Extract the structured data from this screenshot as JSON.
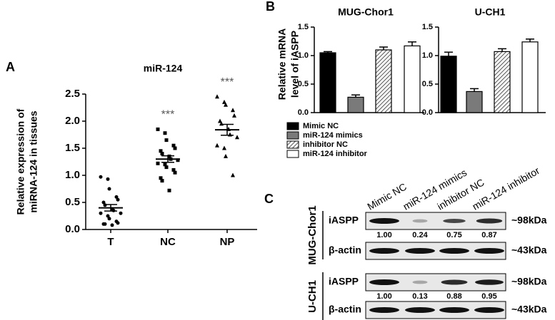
{
  "chart_data": [
    {
      "type": "dot",
      "panel": "A",
      "title": "miR-124",
      "ylabel": [
        "Relative expression of",
        "miRNA-124 in tissues"
      ],
      "categories": [
        "T",
        "NC",
        "NP"
      ],
      "markers": [
        "circle",
        "square",
        "triangle"
      ],
      "values": [
        [
          0.97,
          0.93,
          0.75,
          0.6,
          0.55,
          0.5,
          0.45,
          0.38,
          0.35,
          0.3,
          0.3,
          0.25,
          0.2,
          0.15,
          0.12,
          0.1,
          0.1,
          0.08
        ],
        [
          1.85,
          1.78,
          1.65,
          1.55,
          1.5,
          1.45,
          1.4,
          1.35,
          1.3,
          1.28,
          1.22,
          1.2,
          1.15,
          1.1,
          1.05,
          0.95,
          0.9,
          0.72
        ],
        [
          2.45,
          2.35,
          2.3,
          2.2,
          2.1,
          2.0,
          1.95,
          1.85,
          1.75,
          1.7,
          1.55,
          1.5,
          1.35,
          1.0
        ]
      ],
      "mean": [
        0.4,
        1.3,
        1.84
      ],
      "sem": [
        0.06,
        0.06,
        0.1
      ],
      "annotations": [
        null,
        "***",
        "***"
      ],
      "ylim": [
        0,
        2.5
      ],
      "yticks": [
        {
          "value": 0,
          "label": "0.0"
        },
        0.5,
        {
          "value": 1,
          "label": "1.0"
        },
        1.5,
        {
          "value": 2,
          "label": "2.0"
        },
        2.5
      ]
    },
    {
      "type": "bar",
      "panel": "B",
      "title": "MUG-Chor1",
      "ylabel": [
        "Relative mRNA",
        "level of iASPP"
      ],
      "values": [
        1.05,
        0.27,
        1.1,
        1.17
      ],
      "errors": [
        0.02,
        0.04,
        0.05,
        0.07
      ],
      "ylim": [
        0,
        1.5
      ],
      "yticks": [
        {
          "value": 0,
          "label": "0.0"
        },
        0.5,
        {
          "value": 1,
          "label": "1.0"
        },
        1.5
      ],
      "legend": [
        {
          "name": "Mimic NC",
          "color": "#000000"
        },
        {
          "name": "miR-124 mimics",
          "color": "#7a7a7a"
        },
        {
          "name": "inhibitor NC",
          "color": "hatch"
        },
        {
          "name": "miR-124 inhibitor",
          "color": "#ffffff"
        }
      ]
    },
    {
      "type": "bar",
      "title": "U-CH1",
      "values": [
        0.99,
        0.37,
        1.07,
        1.24
      ],
      "errors": [
        0.07,
        0.05,
        0.05,
        0.05
      ],
      "ylim": [
        0,
        1.5
      ],
      "yticks": [
        {
          "value": 0,
          "label": "0.0"
        },
        0.5,
        {
          "value": 1,
          "label": "1.0"
        },
        1.5
      ]
    }
  ],
  "blot": {
    "panel": "C",
    "columns": [
      "Mimic NC",
      "miR-124 mimics",
      "inhibitor NC",
      "miR-124 inhibitor"
    ],
    "groups": [
      {
        "cell_line": "MUG-Chor1",
        "rows": [
          {
            "protein": "iASPP",
            "size": "~98kDa",
            "quant": [
              "1.00",
              "0.24",
              "0.75",
              "0.87"
            ]
          },
          {
            "protein": "β-actin",
            "size": "~43kDa"
          }
        ]
      },
      {
        "cell_line": "U-CH1",
        "rows": [
          {
            "protein": "iASPP",
            "size": "~98kDa",
            "quant": [
              "1.00",
              "0.13",
              "0.88",
              "0.95"
            ]
          },
          {
            "protein": "β-actin",
            "size": "~43kDa"
          }
        ]
      }
    ]
  }
}
